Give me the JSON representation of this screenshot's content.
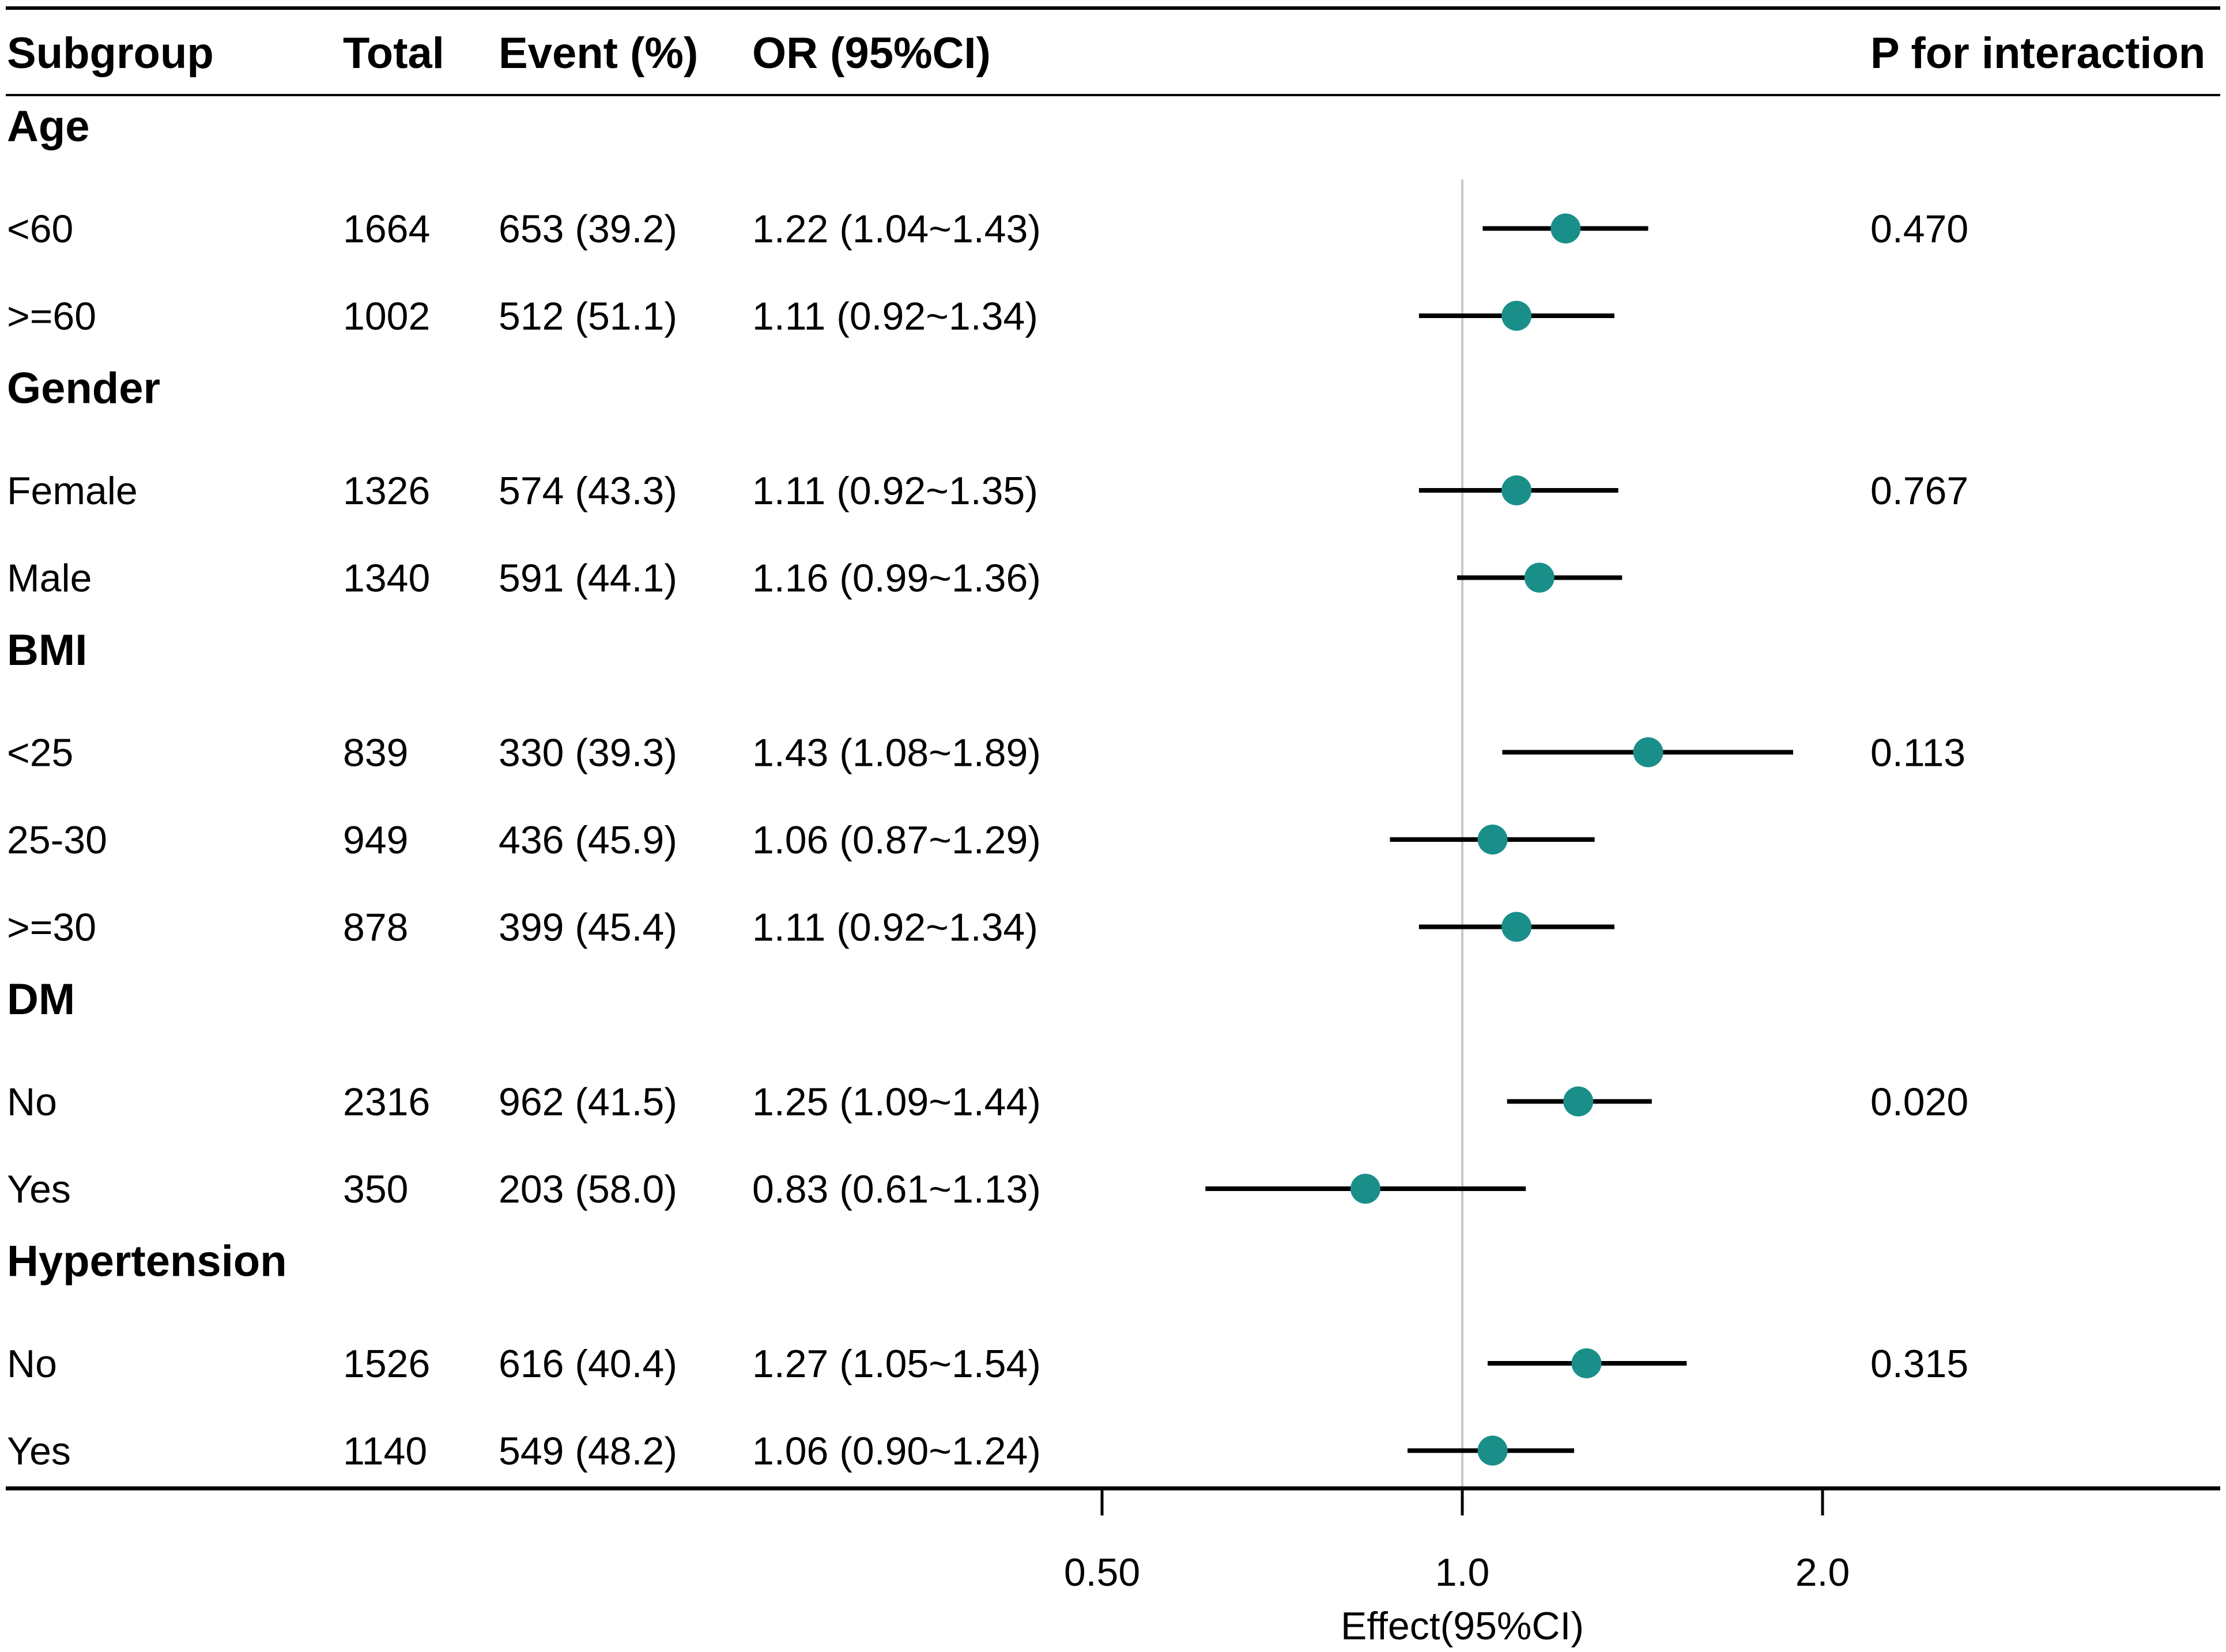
{
  "headers": {
    "subgroup": "Subgroup",
    "total": "Total",
    "event": "Event (%)",
    "or": "OR (95%CI)",
    "p": "P for interaction"
  },
  "colors": {
    "point": "#1a8f8a",
    "line": "#000000",
    "ref": "#c8c8c8"
  },
  "chart_data": {
    "type": "forest",
    "xscale": "log2",
    "xlim": [
      0.25,
      4.0
    ],
    "reference": 1.0,
    "xlabel": "Effect(95%CI)",
    "ticks": [
      {
        "value": 0.5,
        "label": "0.50"
      },
      {
        "value": 1.0,
        "label": "1.0"
      },
      {
        "value": 2.0,
        "label": "2.0"
      }
    ],
    "rows": [
      {
        "kind": "group",
        "label": "Age"
      },
      {
        "kind": "sub",
        "label": "<60",
        "total": "1664",
        "event": "653 (39.2)",
        "or_text": "1.22 (1.04~1.43)",
        "or": 1.22,
        "lo": 1.04,
        "hi": 1.43,
        "p": "0.470"
      },
      {
        "kind": "sub",
        "label": ">=60",
        "total": "1002",
        "event": "512 (51.1)",
        "or_text": "1.11 (0.92~1.34)",
        "or": 1.11,
        "lo": 0.92,
        "hi": 1.34,
        "p": ""
      },
      {
        "kind": "group",
        "label": "Gender"
      },
      {
        "kind": "sub",
        "label": "Female",
        "total": "1326",
        "event": "574 (43.3)",
        "or_text": "1.11 (0.92~1.35)",
        "or": 1.11,
        "lo": 0.92,
        "hi": 1.35,
        "p": "0.767"
      },
      {
        "kind": "sub",
        "label": "Male",
        "total": "1340",
        "event": "591 (44.1)",
        "or_text": "1.16 (0.99~1.36)",
        "or": 1.16,
        "lo": 0.99,
        "hi": 1.36,
        "p": ""
      },
      {
        "kind": "group",
        "label": "BMI"
      },
      {
        "kind": "sub",
        "label": "<25",
        "total": "839",
        "event": "330 (39.3)",
        "or_text": "1.43 (1.08~1.89)",
        "or": 1.43,
        "lo": 1.08,
        "hi": 1.89,
        "p": "0.113"
      },
      {
        "kind": "sub",
        "label": "25-30",
        "total": "949",
        "event": "436 (45.9)",
        "or_text": "1.06 (0.87~1.29)",
        "or": 1.06,
        "lo": 0.87,
        "hi": 1.29,
        "p": ""
      },
      {
        "kind": "sub",
        "label": ">=30",
        "total": "878",
        "event": "399 (45.4)",
        "or_text": "1.11 (0.92~1.34)",
        "or": 1.11,
        "lo": 0.92,
        "hi": 1.34,
        "p": ""
      },
      {
        "kind": "group",
        "label": "DM"
      },
      {
        "kind": "sub",
        "label": "No",
        "total": "2316",
        "event": "962 (41.5)",
        "or_text": "1.25 (1.09~1.44)",
        "or": 1.25,
        "lo": 1.09,
        "hi": 1.44,
        "p": "0.020"
      },
      {
        "kind": "sub",
        "label": "Yes",
        "total": "350",
        "event": "203 (58.0)",
        "or_text": "0.83 (0.61~1.13)",
        "or": 0.83,
        "lo": 0.61,
        "hi": 1.13,
        "p": ""
      },
      {
        "kind": "group",
        "label": "Hypertension"
      },
      {
        "kind": "sub",
        "label": "No",
        "total": "1526",
        "event": "616 (40.4)",
        "or_text": "1.27 (1.05~1.54)",
        "or": 1.27,
        "lo": 1.05,
        "hi": 1.54,
        "p": "0.315"
      },
      {
        "kind": "sub",
        "label": "Yes",
        "total": "1140",
        "event": "549 (48.2)",
        "or_text": "1.06 (0.90~1.24)",
        "or": 1.06,
        "lo": 0.9,
        "hi": 1.24,
        "p": ""
      }
    ]
  }
}
